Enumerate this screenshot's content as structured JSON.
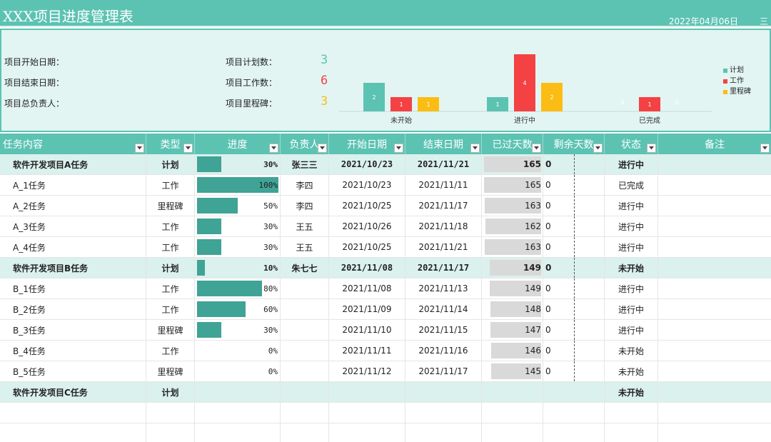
{
  "header": {
    "title": "XXX项目进度管理表",
    "date": "2022年04月06日",
    "menu_icon": "三"
  },
  "summary": {
    "start_label": "项目开始日期：",
    "end_label": "项目结束日期：",
    "owner_label": "项目总负责人：",
    "plan_label": "项目计划数：",
    "plan_count": "3",
    "work_label": "项目工作数：",
    "work_count": "6",
    "milestone_label": "项目里程碑：",
    "milestone_count": "3"
  },
  "colors": {
    "plan": "#5cc3b3",
    "work": "#f44144",
    "milestone": "#fbbd14",
    "header": "#5cc3b3"
  },
  "chart_data": {
    "type": "bar",
    "categories": [
      "未开始",
      "进行中",
      "已完成"
    ],
    "series": [
      {
        "name": "计划",
        "values": [
          2,
          1,
          0
        ]
      },
      {
        "name": "工作",
        "values": [
          1,
          4,
          1
        ]
      },
      {
        "name": "里程碑",
        "values": [
          1,
          2,
          0
        ]
      }
    ],
    "legend_position": "right"
  },
  "table": {
    "columns": [
      "任务内容",
      "类型",
      "进度",
      "负责人",
      "开始日期",
      "结束日期",
      "已过天数",
      "剩余天数",
      "状态",
      "备注"
    ],
    "rows": [
      {
        "task": "软件开发项目A任务",
        "type": "计划",
        "progress": 30,
        "progress_text": "30%",
        "owner": "张三三",
        "start": "2021/10/23",
        "end": "2021/11/21",
        "elapsed": 165,
        "elapsed_text": "165",
        "remain": "0",
        "status": "进行中",
        "parent": true
      },
      {
        "task": "A_1任务",
        "type": "工作",
        "progress": 100,
        "progress_text": "100%",
        "owner": "李四",
        "start": "2021/10/23",
        "end": "2021/11/11",
        "elapsed": 165,
        "elapsed_text": "165",
        "remain": "0",
        "status": "已完成"
      },
      {
        "task": "A_2任务",
        "type": "里程碑",
        "progress": 50,
        "progress_text": "50%",
        "owner": "李四",
        "start": "2021/10/25",
        "end": "2021/11/17",
        "elapsed": 163,
        "elapsed_text": "163",
        "remain": "0",
        "status": "进行中"
      },
      {
        "task": "A_3任务",
        "type": "工作",
        "progress": 30,
        "progress_text": "30%",
        "owner": "王五",
        "start": "2021/10/26",
        "end": "2021/11/18",
        "elapsed": 162,
        "elapsed_text": "162",
        "remain": "0",
        "status": "进行中"
      },
      {
        "task": "A_4任务",
        "type": "工作",
        "progress": 30,
        "progress_text": "30%",
        "owner": "王五",
        "start": "2021/10/25",
        "end": "2021/11/21",
        "elapsed": 163,
        "elapsed_text": "163",
        "remain": "0",
        "status": "进行中"
      },
      {
        "task": "软件开发项目B任务",
        "type": "计划",
        "progress": 10,
        "progress_text": "10%",
        "owner": "朱七七",
        "start": "2021/11/08",
        "end": "2021/11/17",
        "elapsed": 149,
        "elapsed_text": "149",
        "remain": "0",
        "status": "未开始",
        "parent": true
      },
      {
        "task": "B_1任务",
        "type": "工作",
        "progress": 80,
        "progress_text": "80%",
        "owner": "",
        "start": "2021/11/08",
        "end": "2021/11/13",
        "elapsed": 149,
        "elapsed_text": "149",
        "remain": "0",
        "status": "进行中"
      },
      {
        "task": "B_2任务",
        "type": "工作",
        "progress": 60,
        "progress_text": "60%",
        "owner": "",
        "start": "2021/11/09",
        "end": "2021/11/14",
        "elapsed": 148,
        "elapsed_text": "148",
        "remain": "0",
        "status": "进行中"
      },
      {
        "task": "B_3任务",
        "type": "里程碑",
        "progress": 30,
        "progress_text": "30%",
        "owner": "",
        "start": "2021/11/10",
        "end": "2021/11/15",
        "elapsed": 147,
        "elapsed_text": "147",
        "remain": "0",
        "status": "进行中"
      },
      {
        "task": "B_4任务",
        "type": "工作",
        "progress": 0,
        "progress_text": "0%",
        "owner": "",
        "start": "2021/11/11",
        "end": "2021/11/16",
        "elapsed": 146,
        "elapsed_text": "146",
        "remain": "0",
        "status": "未开始"
      },
      {
        "task": "B_5任务",
        "type": "里程碑",
        "progress": 0,
        "progress_text": "0%",
        "owner": "",
        "start": "2021/11/12",
        "end": "2021/11/17",
        "elapsed": 145,
        "elapsed_text": "145",
        "remain": "0",
        "status": "未开始"
      },
      {
        "task": "软件开发项目C任务",
        "type": "计划",
        "progress": null,
        "progress_text": "",
        "owner": "",
        "start": "",
        "end": "",
        "elapsed": null,
        "elapsed_text": "",
        "remain": "",
        "status": "未开始",
        "parent": true
      },
      {
        "task": "",
        "type": "",
        "progress": null,
        "progress_text": "",
        "owner": "",
        "start": "",
        "end": "",
        "elapsed": null,
        "elapsed_text": "",
        "remain": "",
        "status": ""
      },
      {
        "task": "",
        "type": "",
        "progress": null,
        "progress_text": "",
        "owner": "",
        "start": "",
        "end": "",
        "elapsed": null,
        "elapsed_text": "",
        "remain": "",
        "status": ""
      }
    ]
  }
}
